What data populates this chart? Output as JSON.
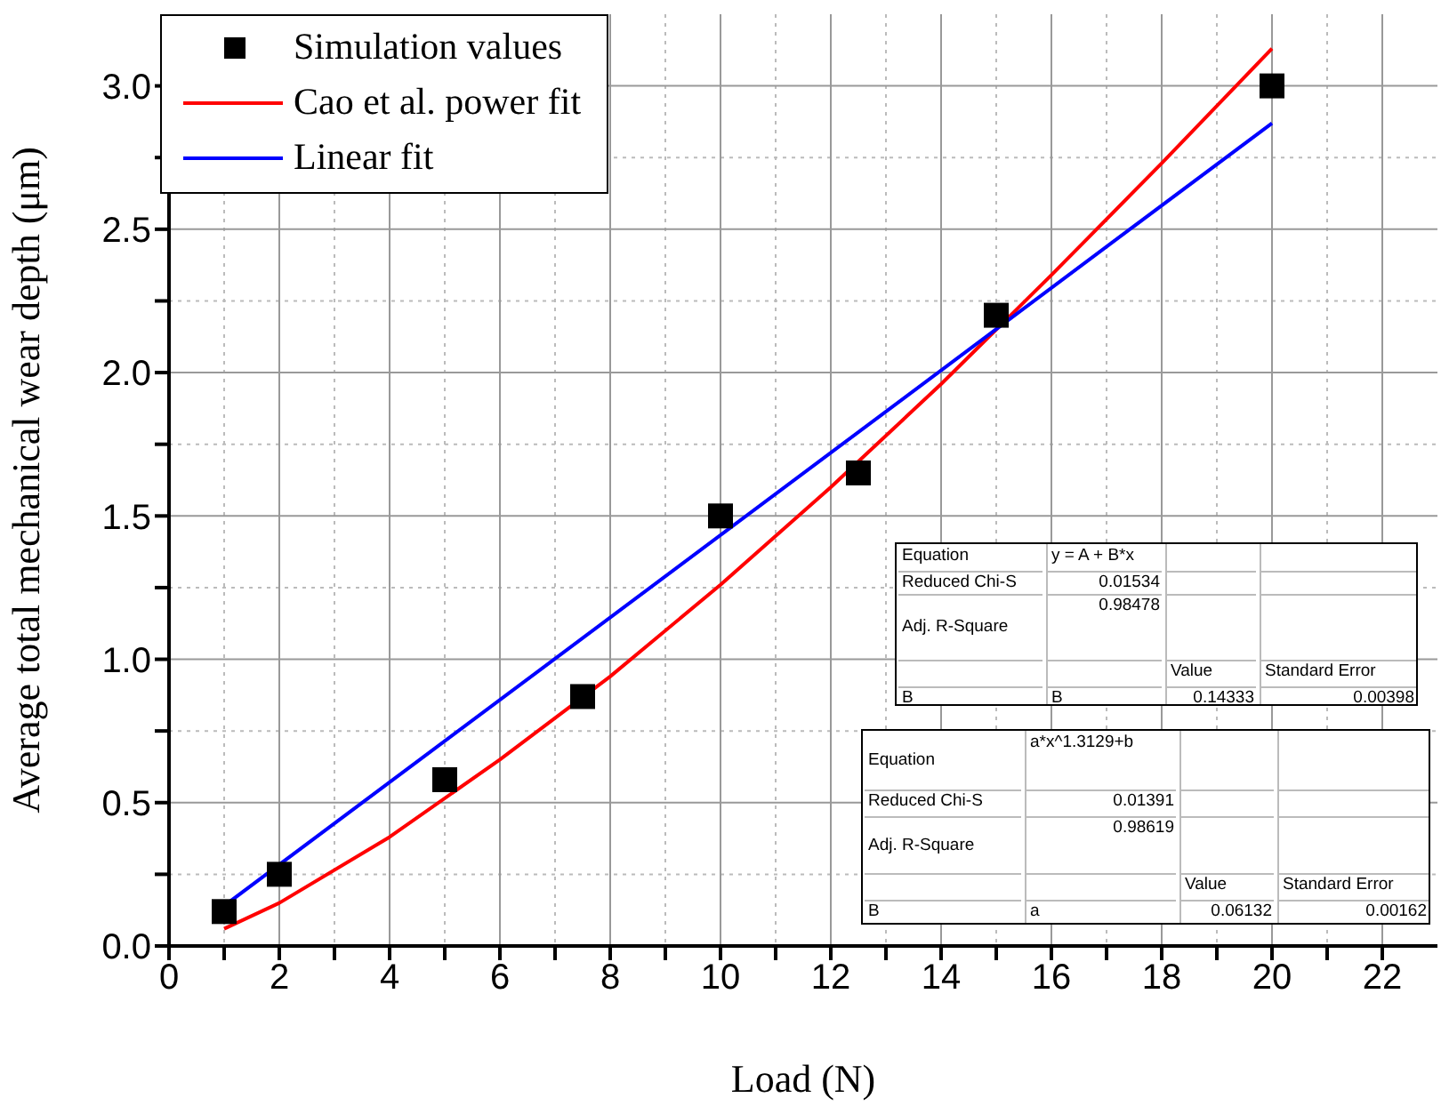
{
  "chart_data": {
    "type": "scatter",
    "xlabel": "Load (N)",
    "ylabel": "Average total mechanical wear depth (μm)",
    "xlim": [
      0,
      23
    ],
    "ylim": [
      0,
      3.25
    ],
    "xticks": [
      0,
      {
        "value": 1,
        "label": null
      },
      2,
      {
        "value": 3,
        "label": null
      },
      4,
      {
        "value": 5,
        "label": null
      },
      6,
      {
        "value": 7,
        "label": null
      },
      8,
      {
        "value": 9,
        "label": null
      },
      10,
      {
        "value": 11,
        "label": null
      },
      12,
      {
        "value": 13,
        "label": null
      },
      14,
      {
        "value": 15,
        "label": null
      },
      16,
      {
        "value": 17,
        "label": null
      },
      18,
      {
        "value": 19,
        "label": null
      },
      20,
      {
        "value": 21,
        "label": null
      },
      22
    ],
    "yticks": [
      "0.0",
      {
        "value": 0.25,
        "label": null
      },
      {
        "value": 0.5,
        "label": "0.5"
      },
      {
        "value": 0.75,
        "label": null
      },
      {
        "value": 1,
        "label": "1.0"
      },
      {
        "value": 1.25,
        "label": null
      },
      {
        "value": 1.5,
        "label": "1.5"
      },
      {
        "value": 1.75,
        "label": null
      },
      {
        "value": 2,
        "label": "2.0"
      },
      {
        "value": 2.25,
        "label": null
      },
      {
        "value": 2.5,
        "label": "2.5"
      },
      {
        "value": 2.75,
        "label": null
      },
      {
        "value": 3,
        "label": "3.0"
      }
    ],
    "grid": true,
    "legend": "top left",
    "series": [
      {
        "name": "Simulation values",
        "marker": "square",
        "color": "#000000",
        "x": [
          1,
          2,
          5,
          7.5,
          10,
          12.5,
          15,
          20
        ],
        "values": [
          0.12,
          0.25,
          0.58,
          0.87,
          1.5,
          1.65,
          2.2,
          3.0
        ]
      },
      {
        "name": "Cao et al. power fit",
        "type": "line",
        "marker": "none",
        "color": "#ff0000",
        "x": [
          1,
          2,
          4,
          6,
          8,
          10,
          12,
          14,
          16,
          18,
          20
        ],
        "values": [
          0.06,
          0.15,
          0.38,
          0.65,
          0.94,
          1.26,
          1.6,
          1.96,
          2.34,
          2.73,
          3.13
        ]
      },
      {
        "name": "Linear fit",
        "type": "line",
        "marker": "none",
        "color": "#0000ff",
        "x": [
          1,
          20
        ],
        "values": [
          0.14,
          2.87
        ]
      }
    ],
    "annotations": [
      "Equation",
      "y = A + B*x",
      "Reduced Chi-S",
      "0.01534",
      "Adj. R-Square",
      "0.98478",
      "Value",
      "Standard Error",
      "B",
      "B",
      "0.14333",
      "0.00398",
      "Equation",
      "a*x^1.3129+b",
      "Reduced Chi-S",
      "0.01391",
      "Adj. R-Square",
      "0.98619",
      "Value",
      "Standard Error",
      "B",
      "a",
      "0.06132",
      "0.00162"
    ]
  }
}
